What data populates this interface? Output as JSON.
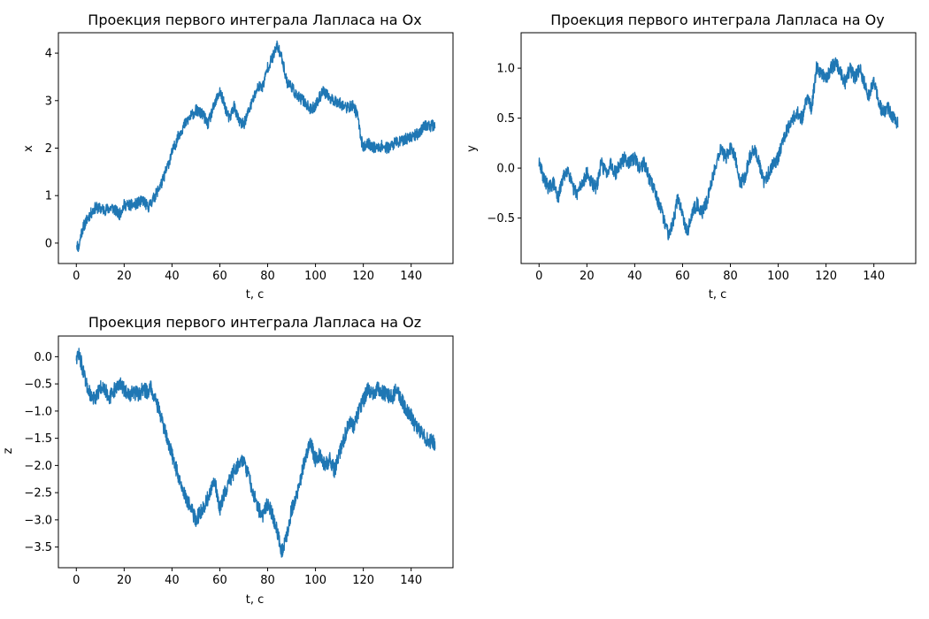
{
  "colors": {
    "line": "#1f77b4",
    "axes": "#000000",
    "background": "#ffffff"
  },
  "chart_data": [
    {
      "type": "line",
      "title": "Проекция первого интеграла Лапласа на Ox",
      "xlabel": "t, c",
      "ylabel": "x",
      "xlim": [
        -7.5,
        157.5
      ],
      "ylim": [
        -0.43,
        4.43
      ],
      "xticks": [
        0,
        20,
        40,
        60,
        80,
        100,
        120,
        140
      ],
      "xtick_labels": [
        "0",
        "20",
        "40",
        "60",
        "80",
        "100",
        "120",
        "140"
      ],
      "yticks": [
        0,
        1,
        2,
        3,
        4
      ],
      "ytick_labels": [
        "0",
        "1",
        "2",
        "3",
        "4"
      ],
      "grid": false,
      "noise": 0.12,
      "series": [
        {
          "x": [
            0,
            1,
            2,
            3,
            5,
            8,
            12,
            15,
            18,
            20,
            24,
            28,
            30,
            33,
            36,
            38,
            40,
            43,
            46,
            50,
            53,
            55,
            57,
            60,
            62,
            64,
            66,
            68,
            70,
            73,
            76,
            78,
            80,
            82,
            84,
            86,
            88,
            90,
            92,
            95,
            98,
            100,
            103,
            106,
            110,
            113,
            116,
            118,
            119,
            120,
            122,
            125,
            128,
            130,
            133,
            136,
            140,
            143,
            146,
            148,
            150
          ],
          "y": [
            0.0,
            -0.1,
            0.2,
            0.35,
            0.55,
            0.75,
            0.7,
            0.75,
            0.6,
            0.8,
            0.8,
            0.9,
            0.75,
            1.0,
            1.3,
            1.6,
            1.9,
            2.3,
            2.55,
            2.8,
            2.7,
            2.5,
            2.8,
            3.2,
            2.9,
            2.6,
            2.9,
            2.55,
            2.5,
            2.9,
            3.3,
            3.3,
            3.7,
            3.9,
            4.15,
            3.9,
            3.4,
            3.3,
            3.1,
            3.0,
            2.8,
            2.9,
            3.2,
            3.05,
            2.95,
            2.85,
            2.9,
            2.6,
            2.2,
            2.0,
            2.1,
            2.0,
            2.05,
            2.0,
            2.1,
            2.15,
            2.25,
            2.3,
            2.5,
            2.45,
            2.5
          ]
        }
      ]
    },
    {
      "type": "line",
      "title": "Проекция первого интеграла Лапласа на Oy",
      "xlabel": "t, c",
      "ylabel": "y",
      "xlim": [
        -7.5,
        157.5
      ],
      "ylim": [
        -0.955,
        1.355
      ],
      "xticks": [
        0,
        20,
        40,
        60,
        80,
        100,
        120,
        140
      ],
      "xtick_labels": [
        "0",
        "20",
        "40",
        "60",
        "80",
        "100",
        "120",
        "140"
      ],
      "yticks": [
        -0.5,
        0.0,
        0.5,
        1.0
      ],
      "ytick_labels": [
        "−0.5",
        "0.0",
        "0.5",
        "1.0"
      ],
      "grid": false,
      "noise": 0.07,
      "series": [
        {
          "x": [
            0,
            2,
            4,
            6,
            8,
            10,
            12,
            14,
            16,
            18,
            20,
            22,
            24,
            26,
            28,
            30,
            32,
            34,
            36,
            38,
            40,
            42,
            44,
            46,
            48,
            50,
            52,
            54,
            56,
            58,
            60,
            62,
            64,
            66,
            68,
            70,
            72,
            74,
            76,
            78,
            80,
            82,
            84,
            86,
            88,
            90,
            92,
            94,
            96,
            98,
            100,
            102,
            104,
            106,
            108,
            110,
            112,
            114,
            116,
            118,
            120,
            122,
            124,
            126,
            128,
            130,
            132,
            134,
            136,
            138,
            140,
            142,
            144,
            146,
            148,
            150
          ],
          "y": [
            0.05,
            -0.1,
            -0.2,
            -0.15,
            -0.3,
            -0.1,
            0.0,
            -0.2,
            -0.25,
            -0.15,
            -0.05,
            -0.15,
            -0.2,
            0.05,
            -0.05,
            0.05,
            -0.05,
            0.05,
            0.1,
            0.05,
            0.1,
            0.0,
            0.05,
            -0.1,
            -0.2,
            -0.35,
            -0.5,
            -0.65,
            -0.55,
            -0.3,
            -0.45,
            -0.65,
            -0.45,
            -0.35,
            -0.45,
            -0.35,
            -0.15,
            0.05,
            0.2,
            0.1,
            0.2,
            0.1,
            -0.15,
            -0.1,
            0.1,
            0.2,
            0.05,
            -0.15,
            -0.05,
            0.05,
            0.1,
            0.3,
            0.4,
            0.5,
            0.55,
            0.5,
            0.7,
            0.6,
            1.0,
            0.95,
            0.9,
            1.0,
            1.05,
            0.95,
            0.85,
            1.0,
            0.9,
            1.0,
            0.85,
            0.7,
            0.9,
            0.65,
            0.55,
            0.6,
            0.5,
            0.45
          ]
        }
      ]
    },
    {
      "type": "line",
      "title": "Проекция первого интеграла Лапласа на Oz",
      "xlabel": "t, c",
      "ylabel": "z",
      "xlim": [
        -7.5,
        157.5
      ],
      "ylim": [
        -3.88,
        0.38
      ],
      "xticks": [
        0,
        20,
        40,
        60,
        80,
        100,
        120,
        140
      ],
      "xtick_labels": [
        "0",
        "20",
        "40",
        "60",
        "80",
        "100",
        "120",
        "140"
      ],
      "yticks": [
        0.0,
        -0.5,
        -1.0,
        -1.5,
        -2.0,
        -2.5,
        -3.0,
        -3.5
      ],
      "ytick_labels": [
        "0.0",
        "−0.5",
        "−1.0",
        "−1.5",
        "−2.0",
        "−2.5",
        "−3.0",
        "−3.5"
      ],
      "grid": false,
      "noise": 0.14,
      "series": [
        {
          "x": [
            0,
            1,
            2,
            3,
            4,
            5,
            6,
            8,
            10,
            12,
            14,
            16,
            18,
            20,
            22,
            24,
            26,
            28,
            30,
            31,
            32,
            34,
            36,
            38,
            40,
            42,
            44,
            46,
            48,
            50,
            52,
            54,
            56,
            58,
            60,
            62,
            64,
            66,
            68,
            70,
            72,
            74,
            76,
            78,
            80,
            82,
            84,
            86,
            88,
            90,
            92,
            94,
            96,
            98,
            100,
            102,
            104,
            106,
            108,
            110,
            112,
            114,
            116,
            118,
            120,
            122,
            124,
            126,
            128,
            130,
            132,
            134,
            136,
            138,
            140,
            142,
            144,
            146,
            148,
            150
          ],
          "y": [
            0.0,
            0.05,
            -0.1,
            -0.3,
            -0.5,
            -0.6,
            -0.7,
            -0.8,
            -0.55,
            -0.6,
            -0.75,
            -0.6,
            -0.5,
            -0.6,
            -0.7,
            -0.65,
            -0.7,
            -0.6,
            -0.65,
            -0.55,
            -0.65,
            -0.9,
            -1.2,
            -1.5,
            -1.8,
            -2.1,
            -2.4,
            -2.6,
            -2.8,
            -3.0,
            -2.85,
            -2.7,
            -2.5,
            -2.3,
            -2.8,
            -2.5,
            -2.3,
            -2.1,
            -1.95,
            -1.9,
            -2.2,
            -2.5,
            -2.8,
            -2.9,
            -2.7,
            -2.9,
            -3.2,
            -3.6,
            -3.3,
            -2.8,
            -2.6,
            -2.2,
            -1.8,
            -1.6,
            -1.9,
            -1.8,
            -2.0,
            -1.9,
            -2.1,
            -1.8,
            -1.5,
            -1.2,
            -1.3,
            -1.0,
            -0.8,
            -0.6,
            -0.7,
            -0.6,
            -0.65,
            -0.7,
            -0.75,
            -0.6,
            -0.8,
            -1.0,
            -1.1,
            -1.3,
            -1.4,
            -1.5,
            -1.55,
            -1.6
          ]
        }
      ]
    }
  ]
}
